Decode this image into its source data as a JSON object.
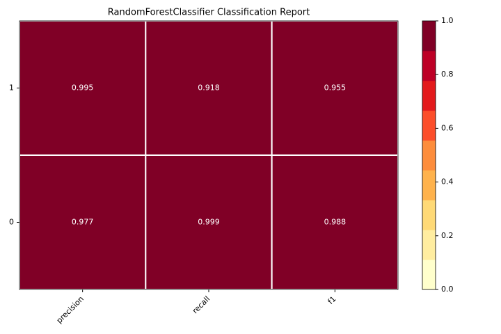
{
  "chart_data": {
    "type": "heatmap",
    "title": "RandomForestClassifier Classification Report",
    "x_categories": [
      "precision",
      "recall",
      "f1"
    ],
    "y_categories": [
      "1",
      "0"
    ],
    "values": [
      [
        0.995,
        0.918,
        0.955
      ],
      [
        0.977,
        0.999,
        0.988
      ]
    ],
    "colormap": [
      "#ffffcc",
      "#ffeda0",
      "#fed976",
      "#feb24c",
      "#fd8d3c",
      "#fc4e2a",
      "#e31a1c",
      "#bd0026",
      "#800026"
    ],
    "clim": [
      0,
      1
    ],
    "cticks": [
      {
        "value": 0,
        "label": "0.0"
      },
      0.2,
      0.4,
      0.6,
      0.8,
      {
        "value": 1,
        "label": "1.0"
      }
    ]
  }
}
